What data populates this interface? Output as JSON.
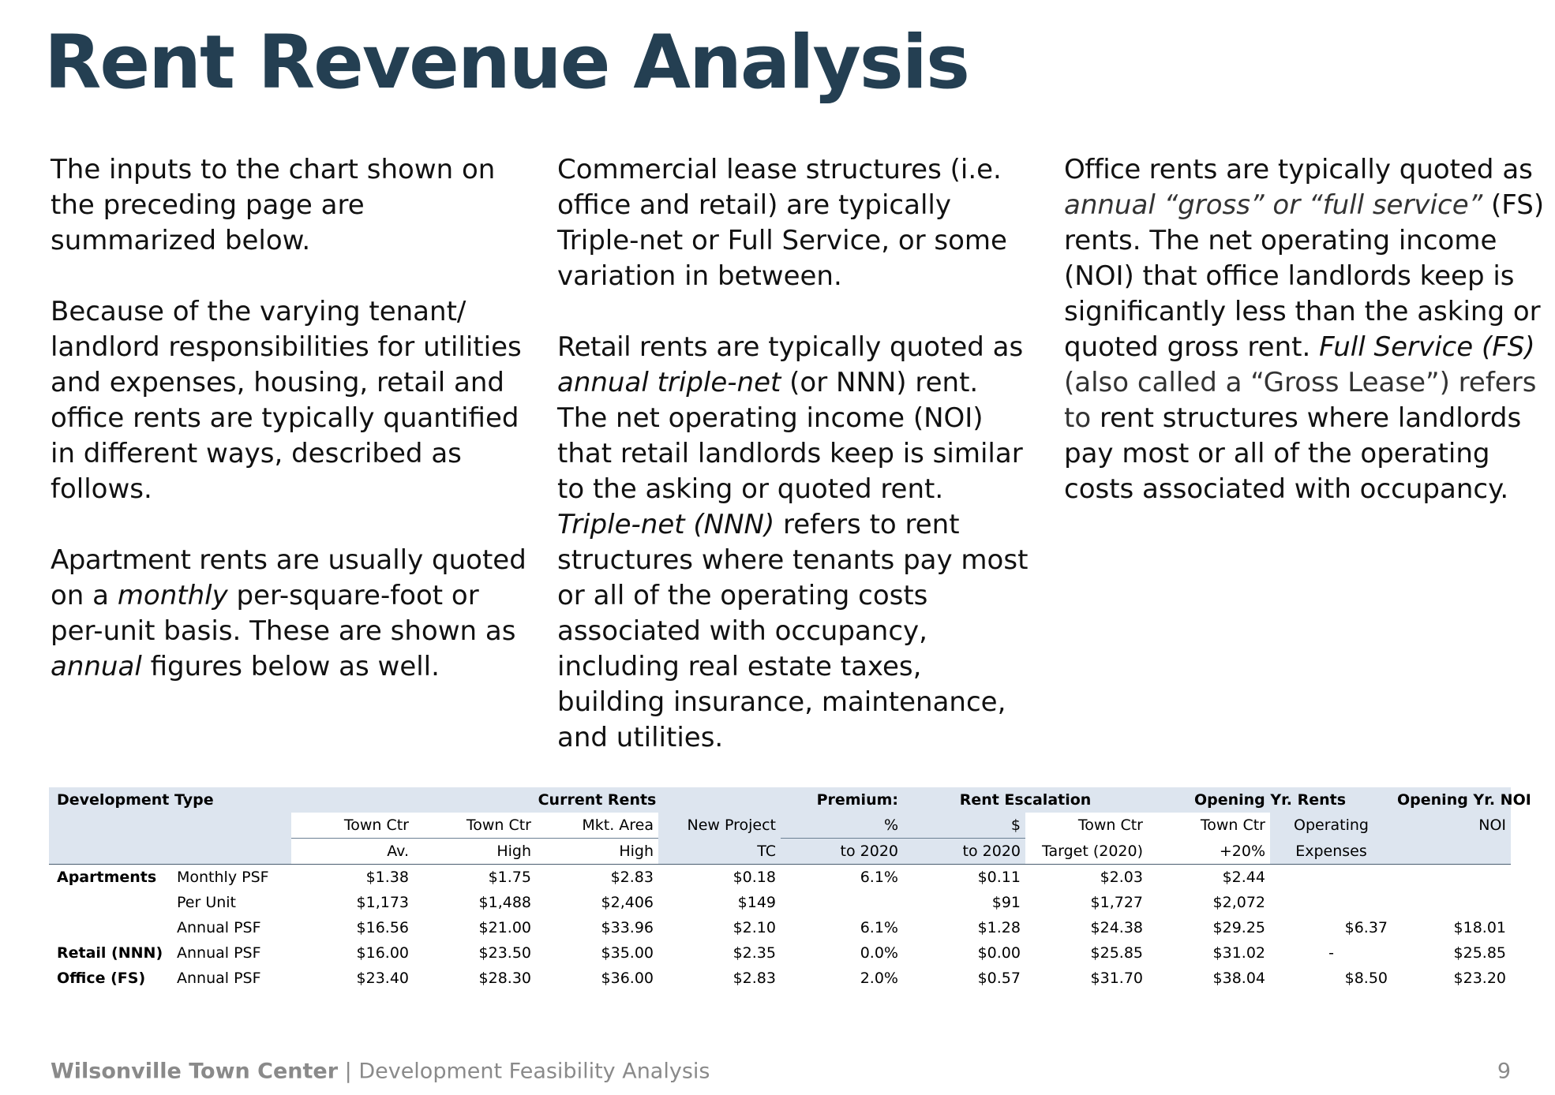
{
  "title": "Rent Revenue Analysis",
  "col1": {
    "p1": "The inputs to the chart shown on the preceding page are summarized below.",
    "p2": "Because of the varying tenant/ landlord responsibilities for utilities and expenses, housing, retail and office rents are typically quantified in different ways, described as follows.",
    "p3_lead": "Apartment",
    "p3_a": " rents are usually quoted on a ",
    "p3_monthly": "monthly",
    "p3_b": " per-square-foot or per-unit basis. These are shown as ",
    "p3_annual": "annual",
    "p3_c": " figures below as well."
  },
  "col2": {
    "p1": "Commercial lease structures (i.e. office and retail) are typically Triple-net or Full Service, or some variation in between.",
    "p2_lead": "Retail",
    "p2_a": " rents are typically quoted as ",
    "p2_term": "annual triple-net",
    "p2_b": " (or NNN) rent. The net operating income (NOI) that retail landlords keep is similar to the asking or quoted rent. ",
    "p2_term2": "Triple-net (NNN)",
    "p2_c": " refers to rent structures where tenants pay most or all of the operating costs associated with occupancy, including real estate taxes, building insurance, maintenance, and utilities."
  },
  "col3": {
    "p1_lead": "Office",
    "p1_a": " rents are typically quoted as ",
    "p1_term": "annual “gross” or “full service”",
    "p1_b": " (FS) rents. The net operating income (NOI) that office landlords keep is significantly less than the asking or quoted gross rent. ",
    "p1_term2": "Full Service (FS)",
    "p1_c": " (also called a “Gross Lease”) refers to",
    "p1_d": " rent structures where landlords pay most or all of the operating costs associated with occupancy."
  },
  "table": {
    "group_headers": {
      "development_type": "Development Type",
      "current_rents": "Current Rents",
      "premium": "Premium:",
      "rent_escalation": "Rent Escalation",
      "opening_rents": "Opening Yr. Rents",
      "opening_noi": "Opening Yr. NOI"
    },
    "col_headers_1": [
      "Town Ctr",
      "Town Ctr",
      "Mkt. Area",
      "New Project",
      "%",
      "$",
      "Town Ctr",
      "Town Ctr",
      "Operating",
      "NOI"
    ],
    "col_headers_2": [
      "Av.",
      "High",
      "High",
      "TC",
      "to 2020",
      "to 2020",
      "Target (2020)",
      "+20%",
      "Expenses",
      ""
    ],
    "rows": [
      {
        "type": "Apartments",
        "unit": "Monthly PSF",
        "values": [
          "$1.38",
          "$1.75",
          "$2.83",
          "$0.18",
          "6.1%",
          "$0.11",
          "$2.03",
          "$2.44",
          "",
          ""
        ]
      },
      {
        "type": "",
        "unit": "Per Unit",
        "values": [
          "$1,173",
          "$1,488",
          "$2,406",
          "$149",
          "",
          "$91",
          "$1,727",
          "$2,072",
          "",
          ""
        ]
      },
      {
        "type": "",
        "unit": "Annual PSF",
        "values": [
          "$16.56",
          "$21.00",
          "$33.96",
          "$2.10",
          "6.1%",
          "$1.28",
          "$24.38",
          "$29.25",
          "$6.37",
          "$18.01"
        ]
      },
      {
        "type": "Retail (NNN)",
        "unit": "Annual PSF",
        "values": [
          "$16.00",
          "$23.50",
          "$35.00",
          "$2.35",
          "0.0%",
          "$0.00",
          "$25.85",
          "$31.02",
          "-",
          "$25.85"
        ]
      },
      {
        "type": "Office (FS)",
        "unit": "Annual PSF",
        "values": [
          "$23.40",
          "$28.30",
          "$36.00",
          "$2.83",
          "2.0%",
          "$0.57",
          "$31.70",
          "$38.04",
          "$8.50",
          "$23.20"
        ]
      }
    ]
  },
  "footer": {
    "brand": "Wilsonville Town Center",
    "separator": " | ",
    "subtitle": "Development Feasibility Analysis",
    "page": "9"
  }
}
